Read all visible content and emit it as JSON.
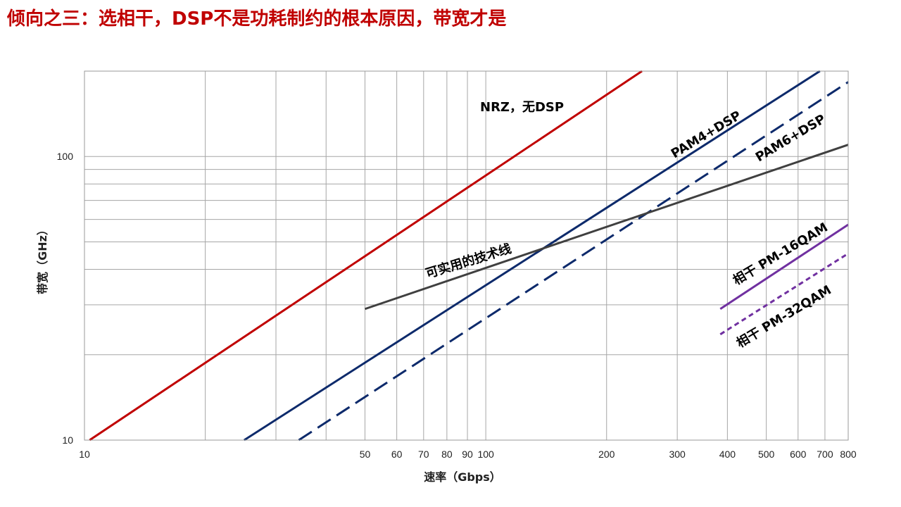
{
  "title": "倾向之三：选相干，DSP不是功耗制约的根本原因，带宽才是",
  "chart_data": {
    "type": "line",
    "scale": "log-log",
    "xlabel": "速率（Gbps）",
    "ylabel": "带宽（GHz）",
    "xlim": [
      10,
      800
    ],
    "ylim": [
      10,
      200
    ],
    "x_tick_labels": [
      "10",
      "50",
      "60",
      "70",
      "80",
      "90",
      "100",
      "200",
      "300",
      "400",
      "500",
      "600",
      "700",
      "800"
    ],
    "x_tick_values": [
      10,
      50,
      60,
      70,
      80,
      90,
      100,
      200,
      300,
      400,
      500,
      600,
      700,
      800
    ],
    "y_tick_labels": [
      "10",
      "100"
    ],
    "y_tick_values": [
      10,
      100
    ],
    "x_grid": [
      10,
      20,
      30,
      40,
      50,
      60,
      70,
      80,
      90,
      100,
      200,
      300,
      400,
      500,
      600,
      700,
      800
    ],
    "y_grid": [
      10,
      20,
      30,
      40,
      50,
      60,
      70,
      80,
      90,
      100,
      200
    ],
    "series": [
      {
        "name": "NRZ，无DSP",
        "color": "#c00000",
        "dash": "solid",
        "x": [
          10.3,
          245
        ],
        "y": [
          10,
          200
        ]
      },
      {
        "name": "PAM4+DSP",
        "color": "#0d2a6b",
        "dash": "solid",
        "x": [
          25,
          680
        ],
        "y": [
          10,
          200
        ]
      },
      {
        "name": "PAM6+DSP",
        "color": "#0d2a6b",
        "dash": "dashed",
        "x": [
          34.2,
          800
        ],
        "y": [
          10,
          183
        ]
      },
      {
        "name": "可实用的技术线",
        "color": "#404040",
        "dash": "solid",
        "x": [
          50,
          800
        ],
        "y": [
          29,
          110
        ]
      },
      {
        "name": "相干 PM-16QAM",
        "color": "#7030a0",
        "dash": "solid",
        "x": [
          384,
          800
        ],
        "y": [
          29,
          57.5
        ]
      },
      {
        "name": "相干 PM-32QAM",
        "color": "#7030a0",
        "dash": "dotted",
        "x": [
          384,
          800
        ],
        "y": [
          23.6,
          45.5
        ]
      }
    ]
  }
}
